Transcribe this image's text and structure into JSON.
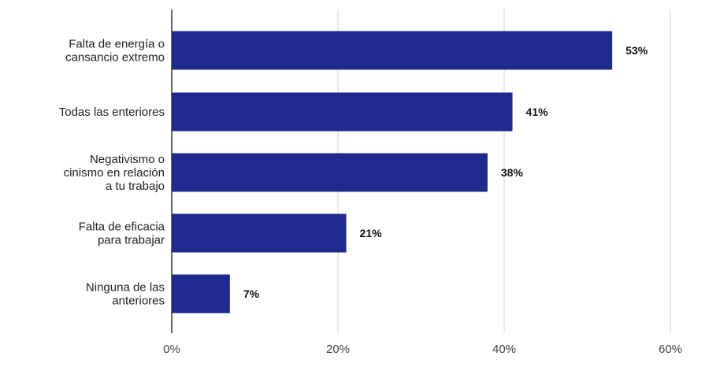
{
  "chart_data": {
    "type": "bar",
    "orientation": "horizontal",
    "categories": [
      [
        "Falta de energía o",
        "cansancio extremo"
      ],
      [
        "Todas las enteriores"
      ],
      [
        "Negativismo o",
        "cinismo en relación",
        "a tu trabajo"
      ],
      [
        "Falta de eficacia",
        "para trabajar"
      ],
      [
        "Ninguna de las",
        "anteriores"
      ]
    ],
    "values": [
      53,
      41,
      38,
      21,
      7
    ],
    "value_labels": [
      "53%",
      "41%",
      "38%",
      "21%",
      "7%"
    ],
    "xlim": [
      0,
      60
    ],
    "x_ticks": [
      0,
      20,
      40,
      60
    ],
    "x_tick_labels": [
      "0%",
      "20%",
      "40%",
      "60%"
    ],
    "grid": true,
    "bar_color": "#1f2a8f",
    "title": "",
    "xlabel": "",
    "ylabel": ""
  }
}
